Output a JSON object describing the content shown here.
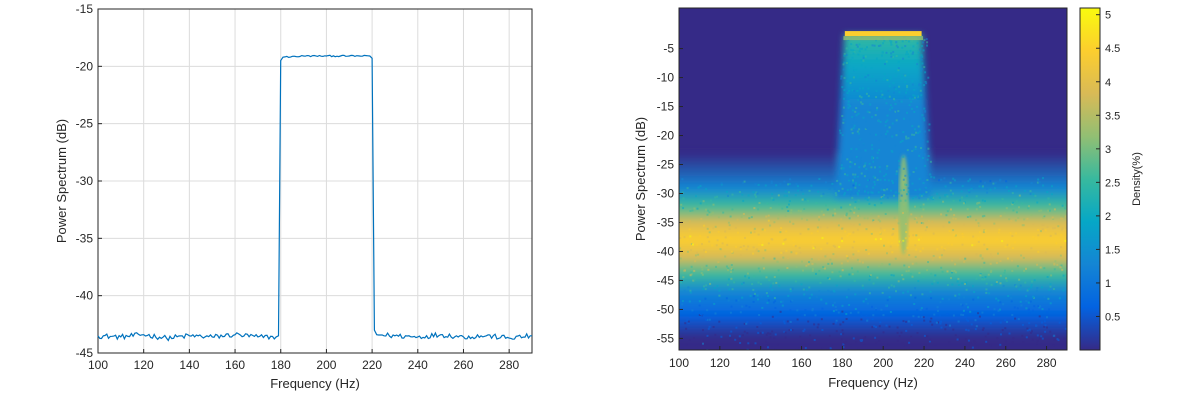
{
  "chart_data": [
    {
      "type": "line",
      "title": "",
      "xlabel": "Frequency (Hz)",
      "ylabel": "Power Spectrum (dB)",
      "xlim": [
        100,
        290
      ],
      "ylim": [
        -45,
        -15
      ],
      "xticks": [
        100,
        120,
        140,
        160,
        180,
        200,
        220,
        240,
        260,
        280
      ],
      "yticks": [
        -45,
        -40,
        -35,
        -30,
        -25,
        -20,
        -15
      ],
      "grid": true,
      "series": [
        {
          "color": "#0072BD",
          "x": [
            100,
            110,
            120,
            130,
            140,
            150,
            160,
            170,
            178,
            179,
            180,
            181,
            190,
            200,
            210,
            219,
            220,
            221,
            222,
            230,
            240,
            250,
            260,
            270,
            280,
            290
          ],
          "y": [
            -43.5,
            -43.6,
            -43.4,
            -43.7,
            -43.5,
            -43.6,
            -43.4,
            -43.6,
            -43.6,
            -43.5,
            -19.5,
            -19.2,
            -19.1,
            -19.1,
            -19.1,
            -19.1,
            -19.3,
            -43.0,
            -43.4,
            -43.5,
            -43.6,
            -43.4,
            -43.6,
            -43.5,
            -43.7,
            -43.5
          ]
        }
      ]
    },
    {
      "type": "heatmap",
      "title": "",
      "xlabel": "Frequency (Hz)",
      "ylabel": "Power Spectrum (dB)",
      "xlim": [
        100,
        290
      ],
      "ylim": [
        -57,
        2
      ],
      "xticks": [
        100,
        120,
        140,
        160,
        180,
        200,
        220,
        240,
        260,
        280
      ],
      "yticks": [
        -55,
        -50,
        -45,
        -40,
        -35,
        -30,
        -25,
        -20,
        -15,
        -10,
        -5
      ],
      "colorbar": {
        "label": "Density(%)",
        "range": [
          0,
          5.1
        ],
        "ticks": [
          0.5,
          1,
          1.5,
          2,
          2.5,
          3,
          3.5,
          4,
          4.5,
          5
        ],
        "colormap": "parula",
        "colors": [
          "#352A87",
          "#0363E1",
          "#1485D4",
          "#06A7C6",
          "#38B99E",
          "#92BF73",
          "#D9BA56",
          "#FCCE2E",
          "#F9FB0E"
        ]
      },
      "features": {
        "noise_band": {
          "x": [
            100,
            290
          ],
          "center": -38,
          "density_peak": 4.4
        },
        "carrier_plateau": {
          "x": [
            180,
            220
          ],
          "level": -2.5,
          "density_peak": 4.6
        },
        "transient_tone": {
          "x": 210,
          "top": -26
        }
      }
    }
  ]
}
